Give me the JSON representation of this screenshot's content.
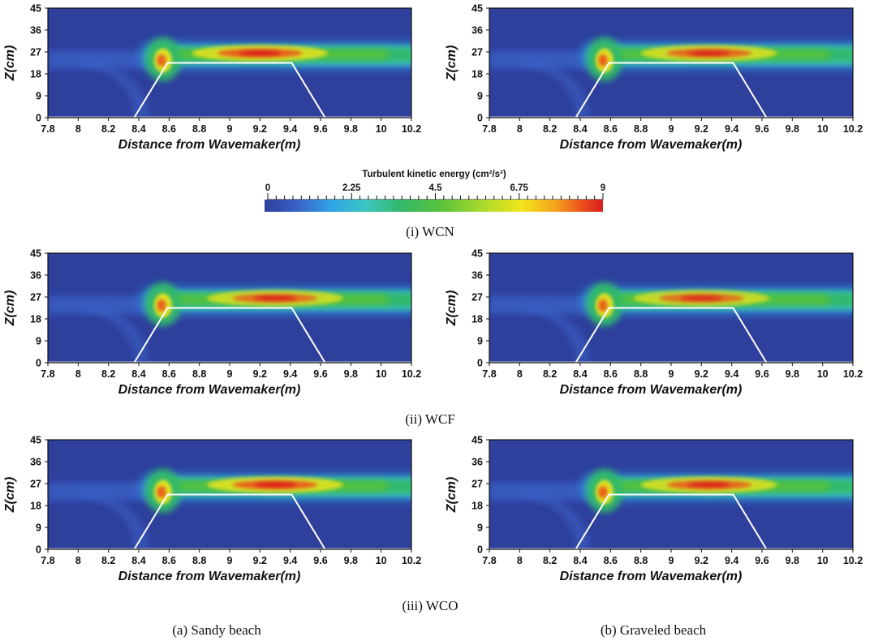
{
  "chart_data": {
    "type": "heatmap",
    "colorbar": {
      "title": "Turbulent kinetic energy (cm²/s²)",
      "range": [
        0,
        9
      ],
      "tick_labels": [
        "0",
        "2.25",
        "4.5",
        "6.75",
        "9"
      ],
      "tick_values": [
        0,
        2.25,
        4.5,
        6.75,
        9
      ]
    },
    "colors": [
      "#2e3f9c",
      "#3a63c8",
      "#2fa6e6",
      "#3cc6c0",
      "#33b86a",
      "#57c23b",
      "#a8d92c",
      "#f2e51d",
      "#f5a21c",
      "#ea4d1d",
      "#d81e1e"
    ],
    "panels": [
      {
        "row": 0,
        "col": 0,
        "peak_x": 9.2,
        "jet_level": 0.95,
        "xlabel": "Distance from Wavemaker(m)",
        "ylabel": "Z(cm)"
      },
      {
        "row": 0,
        "col": 1,
        "peak_x": 9.25,
        "jet_level": 0.88,
        "xlabel": "Distance from Wavemaker(m)",
        "ylabel": "Z(cm)"
      },
      {
        "row": 1,
        "col": 0,
        "peak_x": 9.3,
        "jet_level": 0.85,
        "xlabel": "Distance from Wavemaker(m)",
        "ylabel": "Z(cm)"
      },
      {
        "row": 1,
        "col": 1,
        "peak_x": 9.2,
        "jet_level": 0.82,
        "xlabel": "Distance from Wavemaker(m)",
        "ylabel": "Z(cm)"
      },
      {
        "row": 2,
        "col": 0,
        "peak_x": 9.3,
        "jet_level": 0.95,
        "xlabel": "Distance from Wavemaker(m)",
        "ylabel": "Z(cm)"
      },
      {
        "row": 2,
        "col": 1,
        "peak_x": 9.25,
        "jet_level": 0.9,
        "xlabel": "Distance from Wavemaker(m)",
        "ylabel": "Z(cm)"
      }
    ],
    "x_ticks": [
      7.8,
      8,
      8.2,
      8.4,
      8.6,
      8.8,
      9,
      9.2,
      9.4,
      9.6,
      9.8,
      10,
      10.2
    ],
    "x_tick_labels": [
      "7.8",
      "8",
      "8.2",
      "8.4",
      "8.6",
      "8.8",
      "9",
      "9.2",
      "9.4",
      "9.6",
      "9.8",
      "10",
      "10.2"
    ],
    "xlim": [
      7.8,
      10.2
    ],
    "y_ticks": [
      0,
      9,
      18,
      27,
      36,
      45
    ],
    "y_tick_labels": [
      "0",
      "9",
      "18",
      "27",
      "36",
      "45"
    ],
    "ylim": [
      0,
      45
    ],
    "structure": {
      "toe_left_x": 8.37,
      "crest_left_x": 8.59,
      "crest_right_x": 9.41,
      "toe_right_x": 9.63,
      "crest_z": 22.5,
      "base_z": 0
    },
    "xlabel": "Distance from Wavemaker(m)",
    "ylabel": "Z(cm)"
  },
  "captions": {
    "row1": "(i) WCN",
    "row2": "(ii) WCF",
    "row3": "(iii) WCO",
    "col_a": "(a) Sandy beach",
    "col_b": "(b) Graveled beach"
  }
}
